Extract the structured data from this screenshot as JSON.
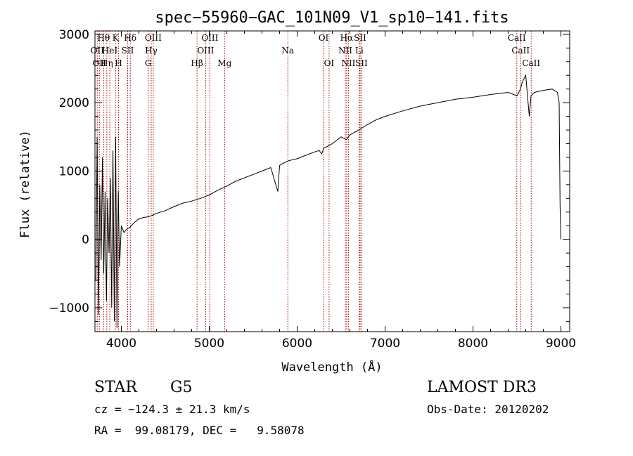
{
  "chart_data": {
    "type": "line",
    "title": "spec−55960−GAC_101N09_V1_sp10−141.fits",
    "xlabel": "Wavelength (Å)",
    "ylabel": "Flux (relative)",
    "xlim": [
      3700,
      9100
    ],
    "ylim": [
      -1350,
      3050
    ],
    "xticks": [
      4000,
      5000,
      6000,
      7000,
      8000,
      9000
    ],
    "yticks": [
      -1000,
      0,
      1000,
      2000,
      3000
    ],
    "ytick_labels": [
      "−1000",
      "0",
      "1000",
      "2000",
      "3000"
    ],
    "grid": false,
    "series": [
      {
        "name": "spectrum",
        "color": "#000000",
        "x": [
          3710,
          3725,
          3740,
          3755,
          3770,
          3785,
          3800,
          3815,
          3830,
          3845,
          3860,
          3875,
          3890,
          3905,
          3920,
          3935,
          3950,
          3965,
          3980,
          4000,
          4030,
          4060,
          4100,
          4150,
          4200,
          4250,
          4300,
          4350,
          4400,
          4500,
          4600,
          4700,
          4800,
          4900,
          5000,
          5100,
          5200,
          5300,
          5400,
          5500,
          5600,
          5700,
          5780,
          5800,
          5820,
          5900,
          6000,
          6100,
          6200,
          6250,
          6280,
          6300,
          6400,
          6500,
          6560,
          6600,
          6700,
          6800,
          6900,
          7000,
          7200,
          7400,
          7600,
          7800,
          8000,
          8200,
          8400,
          8500,
          8540,
          8560,
          8600,
          8640,
          8660,
          8700,
          8800,
          8900,
          8960,
          8980,
          8990,
          9000
        ],
        "y": [
          -600,
          1500,
          -1100,
          800,
          -300,
          1200,
          -500,
          700,
          -900,
          600,
          -200,
          900,
          -1000,
          1300,
          -1200,
          1500,
          -1300,
          700,
          -400,
          200,
          100,
          150,
          180,
          250,
          300,
          320,
          330,
          350,
          380,
          420,
          480,
          530,
          560,
          600,
          650,
          720,
          780,
          850,
          900,
          950,
          1000,
          1050,
          700,
          1080,
          1100,
          1150,
          1180,
          1230,
          1280,
          1300,
          1250,
          1330,
          1400,
          1500,
          1460,
          1530,
          1600,
          1680,
          1750,
          1800,
          1880,
          1950,
          2000,
          2050,
          2080,
          2120,
          2150,
          2100,
          2200,
          2300,
          2400,
          1800,
          2100,
          2150,
          2180,
          2200,
          2150,
          2000,
          500,
          0
        ]
      }
    ],
    "lines": [
      {
        "wavelength": 3726,
        "label": "OII",
        "row": 2
      },
      {
        "wavelength": 3750,
        "label": "OII",
        "row": 3
      },
      {
        "wavelength": 3798,
        "label": "Hθ",
        "row": 1
      },
      {
        "wavelength": 3835,
        "label": "Hη",
        "row": 3
      },
      {
        "wavelength": 3869,
        "label": "HeI",
        "row": 2
      },
      {
        "wavelength": 3934,
        "label": "K",
        "row": 1
      },
      {
        "wavelength": 3968,
        "label": "H",
        "row": 3
      },
      {
        "wavelength": 4072,
        "label": "SII",
        "row": 2
      },
      {
        "wavelength": 4102,
        "label": "Hδ",
        "row": 1
      },
      {
        "wavelength": 4305,
        "label": "G",
        "row": 3
      },
      {
        "wavelength": 4340,
        "label": "Hγ",
        "row": 2
      },
      {
        "wavelength": 4363,
        "label": "OIII",
        "row": 1
      },
      {
        "wavelength": 4861,
        "label": "Hβ",
        "row": 3
      },
      {
        "wavelength": 4959,
        "label": "OIII",
        "row": 2
      },
      {
        "wavelength": 5007,
        "label": "OIII",
        "row": 1
      },
      {
        "wavelength": 5175,
        "label": "Mg",
        "row": 3
      },
      {
        "wavelength": 5894,
        "label": "Na",
        "row": 2
      },
      {
        "wavelength": 6300,
        "label": "OI",
        "row": 1
      },
      {
        "wavelength": 6363,
        "label": "OI",
        "row": 3
      },
      {
        "wavelength": 6548,
        "label": "NII",
        "row": 2
      },
      {
        "wavelength": 6563,
        "label": "Hα",
        "row": 1
      },
      {
        "wavelength": 6583,
        "label": "NII",
        "row": 3
      },
      {
        "wavelength": 6707,
        "label": "Li",
        "row": 2
      },
      {
        "wavelength": 6716,
        "label": "SII",
        "row": 1
      },
      {
        "wavelength": 6731,
        "label": "SII",
        "row": 3
      },
      {
        "wavelength": 8498,
        "label": "CaII",
        "row": 1
      },
      {
        "wavelength": 8542,
        "label": "CaII",
        "row": 2
      },
      {
        "wavelength": 8662,
        "label": "CaII",
        "row": 3
      }
    ]
  },
  "info": {
    "class": "STAR",
    "subclass": "G5",
    "survey": "LAMOST DR3",
    "cz": "cz = −124.3 ± 21.3 km/s",
    "obs_date": "Obs-Date: 20120202",
    "radec": "RA =  99.08179, DEC =   9.58078"
  }
}
